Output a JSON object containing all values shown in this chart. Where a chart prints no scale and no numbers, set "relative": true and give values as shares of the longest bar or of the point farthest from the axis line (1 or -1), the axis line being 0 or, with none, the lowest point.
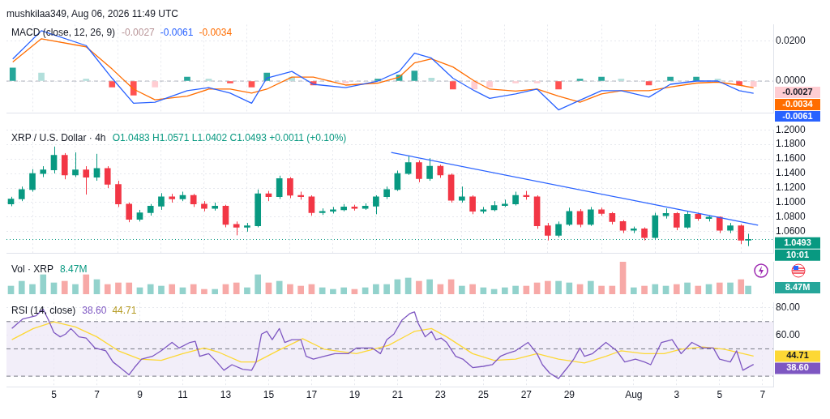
{
  "chart_data": [
    {
      "type": "line",
      "title": "mushkilaa349, Aug 06, 2026 11:49 UTC",
      "subtitle": "MACD (close, 12, 26, 9)",
      "tick_labels": "y",
      "grid": true,
      "legend": false,
      "xlim": [
        "2026-07-02T19:00",
        "2026-08-07T12:00"
      ],
      "xticks": [
        "2026-07-05",
        "2026-07-07",
        "2026-07-09",
        "2026-07-11",
        "2026-07-13",
        "2026-07-15",
        "2026-07-17",
        "2026-07-19",
        "2026-07-21",
        "2026-07-23",
        "2026-07-25",
        "2026-07-27",
        "2026-07-29",
        "2026-08-01",
        "2026-08-03",
        "2026-08-05",
        "2026-08-07"
      ],
      "ylim": [
        -0.016,
        0.028
      ],
      "yticks": [
        {
          "value": 0.02,
          "label": "0.0200"
        },
        {
          "value": 0,
          "label": "0.0000"
        }
      ],
      "x": [
        "2026-07-03T02:00",
        "2026-07-04T10:00",
        "2026-07-06T12:00",
        "2026-07-07T17:00",
        "2026-07-08T17:00",
        "2026-07-09T17:00",
        "2026-07-11T05:00",
        "2026-07-12T05:00",
        "2026-07-13T05:00",
        "2026-07-14T05:00",
        "2026-07-14T22:00",
        "2026-07-16T02:00",
        "2026-07-17T02:00",
        "2026-07-18T14:00",
        "2026-07-20T02:00",
        "2026-07-21T02:00",
        "2026-07-21T19:00",
        "2026-07-22T14:00",
        "2026-07-23T14:00",
        "2026-07-24T14:00",
        "2026-07-25T07:00",
        "2026-07-26T12:00",
        "2026-07-27T12:00",
        "2026-07-28T12:00",
        "2026-07-29T12:00",
        "2026-07-30T12:00",
        "2026-07-31T10:00",
        "2026-08-01T17:00",
        "2026-08-02T17:00",
        "2026-08-03T22:00",
        "2026-08-04T22:00",
        "2026-08-05T22:00",
        "2026-08-06T14:00"
      ],
      "series": [
        {
          "type": "bar",
          "values": [
            0.0065,
            0.004,
            0.001,
            -0.003,
            -0.007,
            -0.003,
            0.002,
            0.001,
            -0.001,
            -0.003,
            0.004,
            0.002,
            -0.002,
            -0.001,
            0.001,
            0.003,
            0.005,
            0.0015,
            -0.004,
            -0.004,
            -0.003,
            -0.001,
            -0.001,
            -0.004,
            0.001,
            0.002,
            0.001,
            -0.002,
            0.002,
            0.002,
            0.001,
            -0.002,
            -0.0027
          ],
          "colors": [
            "#26a69a",
            "#b2dfdb",
            "#b2dfdb",
            "#ff5252",
            "#ff5252",
            "#ffcdd2",
            "#26a69a",
            "#b2dfdb",
            "#ff5252",
            "#ff5252",
            "#26a69a",
            "#b2dfdb",
            "#ff5252",
            "#ffcdd2",
            "#26a69a",
            "#26a69a",
            "#26a69a",
            "#b2dfdb",
            "#ff5252",
            "#ffcdd2",
            "#ffcdd2",
            "#ffcdd2",
            "#ffcdd2",
            "#ff5252",
            "#26a69a",
            "#26a69a",
            "#b2dfdb",
            "#ff5252",
            "#26a69a",
            "#26a69a",
            "#b2dfdb",
            "#ff5252",
            "#ffcdd2"
          ]
        },
        {
          "type": "line",
          "color": "#2962ff",
          "values": [
            0.011,
            0.025,
            0.0176,
            0.0014,
            -0.011,
            -0.0105,
            -0.0048,
            -0.0033,
            -0.006,
            -0.011,
            0.0015,
            0.0048,
            -0.0016,
            -0.0033,
            0,
            0.0048,
            0.0138,
            0.0114,
            0.0014,
            -0.0048,
            -0.0086,
            -0.0064,
            -0.004,
            -0.0143,
            -0.0095,
            -0.0048,
            -0.0048,
            -0.008,
            -0.0016,
            0,
            0,
            -0.0048,
            -0.0061
          ]
        },
        {
          "type": "line",
          "color": "#ff6d00",
          "values": [
            0.0095,
            0.021,
            0.017,
            0.006,
            -0.004,
            -0.0093,
            -0.0075,
            -0.004,
            -0.004,
            -0.006,
            -0.004,
            0.002,
            0.002,
            -0.002,
            -0.001,
            0.002,
            0.009,
            0.011,
            0.007,
            0,
            -0.004,
            -0.005,
            -0.004,
            -0.0075,
            -0.0105,
            -0.0064,
            -0.0048,
            -0.0048,
            -0.003,
            -0.001,
            -0.0005,
            -0.002,
            -0.0034
          ]
        }
      ],
      "ref_lines": [
        {
          "axis": "y",
          "value": 0,
          "color": "#b2b5be",
          "line_style": "dashed"
        }
      ],
      "annotations": [
        "-0.0027",
        "-0.0061",
        "-0.0034"
      ]
    },
    {
      "type": "candlestick",
      "title": "XRP / U.S. Dollar · 4h",
      "tick_labels": "y",
      "grid": true,
      "legend": false,
      "xlim": [
        "2026-07-02T19:00",
        "2026-08-07T12:00"
      ],
      "xticks": [
        "2026-07-05",
        "2026-07-07",
        "2026-07-09",
        "2026-07-11",
        "2026-07-13",
        "2026-07-15",
        "2026-07-17",
        "2026-07-19",
        "2026-07-21",
        "2026-07-23",
        "2026-07-25",
        "2026-07-27",
        "2026-07-29",
        "2026-08-01",
        "2026-08-03",
        "2026-08-05",
        "2026-08-07"
      ],
      "ylim": [
        1.03,
        1.2
      ],
      "yticks": [
        {
          "value": 1.06,
          "label": "1.0600"
        },
        {
          "value": 1.08,
          "label": "1.0800"
        },
        {
          "value": 1.1,
          "label": "1.1000"
        },
        {
          "value": 1.12,
          "label": "1.1200"
        },
        {
          "value": 1.14,
          "label": "1.1400"
        },
        {
          "value": 1.16,
          "label": "1.1600"
        },
        {
          "value": 1.18,
          "label": "1.1800"
        },
        {
          "value": 1.2,
          "label": "1.2000"
        }
      ],
      "x": [
        "2026-07-03T00:00",
        "2026-07-03T12:00",
        "2026-07-04T00:00",
        "2026-07-04T12:00",
        "2026-07-05T00:00",
        "2026-07-05T12:00",
        "2026-07-06T00:00",
        "2026-07-06T12:00",
        "2026-07-07T00:00",
        "2026-07-07T12:00",
        "2026-07-08T00:00",
        "2026-07-08T12:00",
        "2026-07-09T00:00",
        "2026-07-09T12:00",
        "2026-07-10T00:00",
        "2026-07-10T12:00",
        "2026-07-11T00:00",
        "2026-07-11T12:00",
        "2026-07-12T00:00",
        "2026-07-12T12:00",
        "2026-07-13T00:00",
        "2026-07-13T12:00",
        "2026-07-14T00:00",
        "2026-07-14T12:00",
        "2026-07-15T00:00",
        "2026-07-15T12:00",
        "2026-07-16T00:00",
        "2026-07-16T12:00",
        "2026-07-17T00:00",
        "2026-07-17T12:00",
        "2026-07-18T00:00",
        "2026-07-18T12:00",
        "2026-07-19T00:00",
        "2026-07-19T12:00",
        "2026-07-20T00:00",
        "2026-07-20T12:00",
        "2026-07-21T00:00",
        "2026-07-21T12:00",
        "2026-07-22T00:00",
        "2026-07-22T12:00",
        "2026-07-23T00:00",
        "2026-07-23T12:00",
        "2026-07-24T00:00",
        "2026-07-24T12:00",
        "2026-07-25T00:00",
        "2026-07-25T12:00",
        "2026-07-26T00:00",
        "2026-07-26T12:00",
        "2026-07-27T00:00",
        "2026-07-27T12:00",
        "2026-07-28T00:00",
        "2026-07-28T12:00",
        "2026-07-29T00:00",
        "2026-07-29T12:00",
        "2026-07-30T00:00",
        "2026-07-30T12:00",
        "2026-07-31T00:00",
        "2026-07-31T12:00",
        "2026-08-01T00:00",
        "2026-08-01T12:00",
        "2026-08-02T00:00",
        "2026-08-02T12:00",
        "2026-08-03T00:00",
        "2026-08-03T12:00",
        "2026-08-04T00:00",
        "2026-08-04T12:00",
        "2026-08-05T00:00",
        "2026-08-05T12:00",
        "2026-08-06T00:00",
        "2026-08-06T08:00"
      ],
      "ohlc": [
        [
          1.098,
          1.108,
          1.095,
          1.105
        ],
        [
          1.105,
          1.122,
          1.102,
          1.118
        ],
        [
          1.118,
          1.146,
          1.115,
          1.14
        ],
        [
          1.14,
          1.15,
          1.135,
          1.145
        ],
        [
          1.145,
          1.177,
          1.14,
          1.165
        ],
        [
          1.165,
          1.168,
          1.132,
          1.138
        ],
        [
          1.138,
          1.169,
          1.135,
          1.145
        ],
        [
          1.145,
          1.15,
          1.111,
          1.135
        ],
        [
          1.135,
          1.167,
          1.13,
          1.147
        ],
        [
          1.147,
          1.15,
          1.12,
          1.125
        ],
        [
          1.125,
          1.13,
          1.094,
          1.098
        ],
        [
          1.098,
          1.1,
          1.073,
          1.077
        ],
        [
          1.077,
          1.09,
          1.074,
          1.086
        ],
        [
          1.086,
          1.098,
          1.082,
          1.095
        ],
        [
          1.095,
          1.113,
          1.09,
          1.108
        ],
        [
          1.108,
          1.112,
          1.1,
          1.105
        ],
        [
          1.105,
          1.115,
          1.102,
          1.11
        ],
        [
          1.11,
          1.112,
          1.094,
          1.098
        ],
        [
          1.098,
          1.102,
          1.088,
          1.092
        ],
        [
          1.092,
          1.1,
          1.089,
          1.095
        ],
        [
          1.095,
          1.097,
          1.066,
          1.07
        ],
        [
          1.07,
          1.074,
          1.055,
          1.066
        ],
        [
          1.066,
          1.072,
          1.06,
          1.068
        ],
        [
          1.068,
          1.118,
          1.066,
          1.112
        ],
        [
          1.112,
          1.116,
          1.102,
          1.108
        ],
        [
          1.108,
          1.137,
          1.105,
          1.133
        ],
        [
          1.133,
          1.135,
          1.106,
          1.11
        ],
        [
          1.11,
          1.115,
          1.104,
          1.108
        ],
        [
          1.108,
          1.11,
          1.082,
          1.086
        ],
        [
          1.086,
          1.092,
          1.083,
          1.088
        ],
        [
          1.088,
          1.094,
          1.085,
          1.09
        ],
        [
          1.09,
          1.098,
          1.088,
          1.094
        ],
        [
          1.094,
          1.097,
          1.089,
          1.092
        ],
        [
          1.092,
          1.099,
          1.09,
          1.095
        ],
        [
          1.095,
          1.11,
          1.084,
          1.108
        ],
        [
          1.108,
          1.122,
          1.105,
          1.118
        ],
        [
          1.118,
          1.144,
          1.116,
          1.14
        ],
        [
          1.14,
          1.164,
          1.138,
          1.155
        ],
        [
          1.155,
          1.158,
          1.128,
          1.133
        ],
        [
          1.133,
          1.161,
          1.13,
          1.15
        ],
        [
          1.15,
          1.152,
          1.134,
          1.138
        ],
        [
          1.138,
          1.14,
          1.1,
          1.103
        ],
        [
          1.103,
          1.122,
          1.1,
          1.108
        ],
        [
          1.108,
          1.11,
          1.084,
          1.088
        ],
        [
          1.088,
          1.094,
          1.085,
          1.09
        ],
        [
          1.09,
          1.102,
          1.088,
          1.096
        ],
        [
          1.096,
          1.104,
          1.094,
          1.098
        ],
        [
          1.098,
          1.115,
          1.096,
          1.11
        ],
        [
          1.11,
          1.116,
          1.104,
          1.108
        ],
        [
          1.108,
          1.11,
          1.064,
          1.068
        ],
        [
          1.068,
          1.072,
          1.048,
          1.055
        ],
        [
          1.055,
          1.074,
          1.052,
          1.07
        ],
        [
          1.07,
          1.093,
          1.068,
          1.088
        ],
        [
          1.088,
          1.091,
          1.066,
          1.07
        ],
        [
          1.07,
          1.094,
          1.068,
          1.09
        ],
        [
          1.09,
          1.093,
          1.082,
          1.085
        ],
        [
          1.085,
          1.087,
          1.07,
          1.074
        ],
        [
          1.074,
          1.076,
          1.058,
          1.062
        ],
        [
          1.062,
          1.067,
          1.058,
          1.064
        ],
        [
          1.064,
          1.066,
          1.048,
          1.052
        ],
        [
          1.052,
          1.086,
          1.05,
          1.082
        ],
        [
          1.082,
          1.092,
          1.078,
          1.085
        ],
        [
          1.085,
          1.087,
          1.062,
          1.066
        ],
        [
          1.066,
          1.088,
          1.064,
          1.084
        ],
        [
          1.084,
          1.086,
          1.075,
          1.078
        ],
        [
          1.078,
          1.082,
          1.074,
          1.08
        ],
        [
          1.08,
          1.081,
          1.058,
          1.062
        ],
        [
          1.062,
          1.072,
          1.058,
          1.068
        ],
        [
          1.068,
          1.07,
          1.043,
          1.0483
        ],
        [
          1.0483,
          1.0571,
          1.0402,
          1.0493
        ]
      ],
      "series": [
        {
          "type": "line",
          "color": "#2962ff",
          "x": [
            "2026-07-20T17:00",
            "2026-08-06T19:00"
          ],
          "values": [
            1.169,
            1.069
          ]
        }
      ],
      "ref_lines": [
        {
          "axis": "y",
          "value": 1.0493,
          "label": "1.0493",
          "color": "#089981",
          "line_style": "dotted"
        }
      ],
      "annotations": [
        "O1.0483 H1.0571 L1.0402 C1.0493 +0.0011 (+0.10%)",
        "10:01"
      ]
    },
    {
      "type": "bar",
      "title": "Vol · XRP",
      "relative": true,
      "tick_labels": false,
      "legend": false,
      "xlim": [
        "2026-07-02T19:00",
        "2026-08-07T12:00"
      ],
      "x": [
        "2026-07-03T00:00",
        "2026-07-03T12:00",
        "2026-07-04T00:00",
        "2026-07-04T12:00",
        "2026-07-05T00:00",
        "2026-07-05T12:00",
        "2026-07-06T00:00",
        "2026-07-06T12:00",
        "2026-07-07T00:00",
        "2026-07-07T12:00",
        "2026-07-08T00:00",
        "2026-07-08T12:00",
        "2026-07-09T00:00",
        "2026-07-09T12:00",
        "2026-07-10T00:00",
        "2026-07-10T12:00",
        "2026-07-11T00:00",
        "2026-07-11T12:00",
        "2026-07-12T00:00",
        "2026-07-12T12:00",
        "2026-07-13T00:00",
        "2026-07-13T12:00",
        "2026-07-14T00:00",
        "2026-07-14T12:00",
        "2026-07-15T00:00",
        "2026-07-15T12:00",
        "2026-07-16T00:00",
        "2026-07-16T12:00",
        "2026-07-17T00:00",
        "2026-07-17T12:00",
        "2026-07-18T00:00",
        "2026-07-18T12:00",
        "2026-07-19T00:00",
        "2026-07-19T12:00",
        "2026-07-20T00:00",
        "2026-07-20T12:00",
        "2026-07-21T00:00",
        "2026-07-21T12:00",
        "2026-07-22T00:00",
        "2026-07-22T12:00",
        "2026-07-23T00:00",
        "2026-07-23T12:00",
        "2026-07-24T00:00",
        "2026-07-24T12:00",
        "2026-07-25T00:00",
        "2026-07-25T12:00",
        "2026-07-26T00:00",
        "2026-07-26T12:00",
        "2026-07-27T00:00",
        "2026-07-27T12:00",
        "2026-07-28T00:00",
        "2026-07-28T12:00",
        "2026-07-29T00:00",
        "2026-07-29T12:00",
        "2026-07-30T00:00",
        "2026-07-30T12:00",
        "2026-07-31T00:00",
        "2026-07-31T12:00",
        "2026-08-01T00:00",
        "2026-08-01T12:00",
        "2026-08-02T00:00",
        "2026-08-02T12:00",
        "2026-08-03T00:00",
        "2026-08-03T12:00",
        "2026-08-04T00:00",
        "2026-08-04T12:00",
        "2026-08-05T00:00",
        "2026-08-05T12:00",
        "2026-08-06T00:00",
        "2026-08-06T08:00"
      ],
      "values": [
        0.25,
        0.4,
        0.3,
        0.6,
        0.35,
        0.4,
        0.3,
        0.6,
        0.45,
        0.3,
        0.35,
        0.35,
        0.2,
        0.3,
        0.25,
        0.3,
        0.2,
        0.3,
        0.15,
        0.15,
        0.3,
        0.35,
        0.2,
        0.6,
        0.35,
        0.4,
        0.3,
        0.25,
        0.3,
        0.2,
        0.15,
        0.2,
        0.15,
        0.2,
        0.3,
        0.3,
        0.45,
        0.5,
        0.4,
        0.45,
        0.3,
        0.45,
        0.25,
        0.3,
        0.2,
        0.15,
        0.2,
        0.25,
        0.25,
        0.35,
        0.4,
        0.4,
        0.35,
        0.3,
        0.4,
        0.25,
        0.25,
        1,
        0.2,
        0.25,
        0.3,
        0.25,
        0.3,
        0.35,
        0.25,
        0.3,
        0.35,
        0.35,
        0.45,
        0.25
      ],
      "colors": [
        "#92d2cc",
        "#92d2cc",
        "#92d2cc",
        "#92d2cc",
        "#92d2cc",
        "#f7a9a7",
        "#92d2cc",
        "#f7a9a7",
        "#92d2cc",
        "#f7a9a7",
        "#f7a9a7",
        "#f7a9a7",
        "#92d2cc",
        "#92d2cc",
        "#92d2cc",
        "#f7a9a7",
        "#92d2cc",
        "#f7a9a7",
        "#f7a9a7",
        "#92d2cc",
        "#f7a9a7",
        "#f7a9a7",
        "#92d2cc",
        "#92d2cc",
        "#f7a9a7",
        "#92d2cc",
        "#f7a9a7",
        "#f7a9a7",
        "#f7a9a7",
        "#92d2cc",
        "#92d2cc",
        "#92d2cc",
        "#f7a9a7",
        "#92d2cc",
        "#92d2cc",
        "#92d2cc",
        "#92d2cc",
        "#92d2cc",
        "#f7a9a7",
        "#92d2cc",
        "#f7a9a7",
        "#f7a9a7",
        "#92d2cc",
        "#f7a9a7",
        "#92d2cc",
        "#92d2cc",
        "#92d2cc",
        "#92d2cc",
        "#f7a9a7",
        "#f7a9a7",
        "#f7a9a7",
        "#92d2cc",
        "#92d2cc",
        "#f7a9a7",
        "#92d2cc",
        "#f7a9a7",
        "#f7a9a7",
        "#f7a9a7",
        "#92d2cc",
        "#f7a9a7",
        "#92d2cc",
        "#92d2cc",
        "#f7a9a7",
        "#92d2cc",
        "#f7a9a7",
        "#92d2cc",
        "#f7a9a7",
        "#92d2cc",
        "#f7a9a7",
        "#92d2cc"
      ],
      "annotations": [
        "8.47M",
        "8.47M"
      ]
    },
    {
      "type": "line",
      "title": "RSI (14, close)",
      "grid": true,
      "legend": false,
      "xlim": [
        "2026-07-02T19:00",
        "2026-08-07T12:00"
      ],
      "xticks": [
        {
          "value": "2026-07-05",
          "label": "5"
        },
        {
          "value": "2026-07-07",
          "label": "7"
        },
        {
          "value": "2026-07-09",
          "label": "9"
        },
        {
          "value": "2026-07-11",
          "label": "11"
        },
        {
          "value": "2026-07-13",
          "label": "13"
        },
        {
          "value": "2026-07-15",
          "label": "15"
        },
        {
          "value": "2026-07-17",
          "label": "17"
        },
        {
          "value": "2026-07-19",
          "label": "19"
        },
        {
          "value": "2026-07-21",
          "label": "21"
        },
        {
          "value": "2026-07-23",
          "label": "23"
        },
        {
          "value": "2026-07-25",
          "label": "25"
        },
        {
          "value": "2026-07-27",
          "label": "27"
        },
        {
          "value": "2026-07-29",
          "label": "29"
        },
        {
          "value": "2026-08-01",
          "label": "Aug"
        },
        {
          "value": "2026-08-03",
          "label": "3"
        },
        {
          "value": "2026-08-05",
          "label": "5"
        },
        {
          "value": "2026-08-07",
          "label": "7"
        }
      ],
      "ylim": [
        22,
        84
      ],
      "yticks": [
        {
          "value": 60,
          "label": "60.00"
        },
        {
          "value": 80,
          "label": "80.00"
        }
      ],
      "bands": [
        {
          "axis": "y",
          "from": 30,
          "to": 70,
          "color": "#ede7f6"
        }
      ],
      "ref_lines": [
        {
          "axis": "y",
          "value": 70,
          "color": "#787b86",
          "line_style": "dashed"
        },
        {
          "axis": "y",
          "value": 50,
          "color": "#787b86",
          "line_style": "dashed"
        },
        {
          "axis": "y",
          "value": 30,
          "color": "#787b86",
          "line_style": "dashed"
        }
      ],
      "series": [
        {
          "color": "#7e57c2",
          "x": [
            "2026-07-03T01:00",
            "2026-07-03T13:00",
            "2026-07-04T04:00",
            "2026-07-04T12:00",
            "2026-07-04T18:00",
            "2026-07-05T00:00",
            "2026-07-05T07:00",
            "2026-07-05T13:00",
            "2026-07-05T19:00",
            "2026-07-06T04:00",
            "2026-07-06T12:00",
            "2026-07-06T22:00",
            "2026-07-07T10:00",
            "2026-07-07T18:00",
            "2026-07-08T02:00",
            "2026-07-08T12:00",
            "2026-07-08T18:00",
            "2026-07-09T02:00",
            "2026-07-09T14:00",
            "2026-07-10T00:00",
            "2026-07-10T12:00",
            "2026-07-10T20:00",
            "2026-07-11T08:00",
            "2026-07-11T14:00",
            "2026-07-11T19:00",
            "2026-07-12T05:00",
            "2026-07-12T14:00",
            "2026-07-12T22:00",
            "2026-07-13T07:00",
            "2026-07-13T19:00",
            "2026-07-14T05:00",
            "2026-07-14T10:00",
            "2026-07-14T16:00",
            "2026-07-14T22:00",
            "2026-07-15T04:00",
            "2026-07-15T12:00",
            "2026-07-15T18:00",
            "2026-07-16T02:00",
            "2026-07-16T12:00",
            "2026-07-16T18:00",
            "2026-07-17T02:00",
            "2026-07-17T14:00",
            "2026-07-18T02:00",
            "2026-07-18T17:00",
            "2026-07-19T02:00",
            "2026-07-19T20:00",
            "2026-07-20T05:00",
            "2026-07-20T12:00",
            "2026-07-20T20:00",
            "2026-07-21T05:00",
            "2026-07-21T14:00",
            "2026-07-21T19:00",
            "2026-07-21T23:00",
            "2026-07-22T07:00",
            "2026-07-22T14:00",
            "2026-07-22T19:00",
            "2026-07-23T01:00",
            "2026-07-23T07:00",
            "2026-07-23T17:00",
            "2026-07-24T01:00",
            "2026-07-24T12:00",
            "2026-07-25T00:00",
            "2026-07-25T10:00",
            "2026-07-25T19:00",
            "2026-07-26T02:00",
            "2026-07-26T12:00",
            "2026-07-27T02:00",
            "2026-07-27T12:00",
            "2026-07-27T18:00",
            "2026-07-28T02:00",
            "2026-07-28T12:00",
            "2026-07-28T22:00",
            "2026-07-29T05:00",
            "2026-07-29T12:00",
            "2026-07-29T17:00",
            "2026-07-30T02:00",
            "2026-07-30T17:00",
            "2026-07-31T05:00",
            "2026-07-31T14:00",
            "2026-08-01T02:00",
            "2026-08-01T12:00",
            "2026-08-01T19:00",
            "2026-08-02T07:00",
            "2026-08-02T19:00",
            "2026-08-03T05:00",
            "2026-08-03T17:00",
            "2026-08-04T05:00",
            "2026-08-04T17:00",
            "2026-08-05T00:00",
            "2026-08-05T12:00",
            "2026-08-05T19:00",
            "2026-08-06T02:00",
            "2026-08-06T14:00"
          ],
          "values": [
            64.9,
            71.8,
            74.3,
            79.1,
            71,
            62,
            58.8,
            60.8,
            64.9,
            58.8,
            57.9,
            50.6,
            48.6,
            40.4,
            36.3,
            31,
            36.3,
            42.5,
            44.5,
            48.6,
            54.7,
            50.6,
            54.7,
            55.5,
            44.5,
            46.5,
            40.4,
            34.3,
            38.4,
            35.1,
            34.3,
            40.4,
            60.8,
            62.8,
            56.7,
            64.9,
            54.7,
            56.7,
            56.7,
            44.5,
            42.5,
            44.5,
            46.5,
            46.5,
            50.6,
            50.6,
            46.5,
            56.7,
            60.8,
            71,
            75.9,
            77.1,
            69,
            58.8,
            62.8,
            56.7,
            57.9,
            54.7,
            44.5,
            42.5,
            36.3,
            37.2,
            38.4,
            44.5,
            46.5,
            48.6,
            54.7,
            46.5,
            38.4,
            32.3,
            28.2,
            36.3,
            42.5,
            50.6,
            44.5,
            46.5,
            54.7,
            48.6,
            40.4,
            42.5,
            40.4,
            38.4,
            54.7,
            56.7,
            46.5,
            54.7,
            50.6,
            50.6,
            42.5,
            40.4,
            48.6,
            34.3,
            38.6
          ]
        },
        {
          "color": "#fdd835",
          "x": [
            "2026-07-03T01:00",
            "2026-07-04T01:00",
            "2026-07-05T00:00",
            "2026-07-06T00:00",
            "2026-07-07T00:00",
            "2026-07-08T00:00",
            "2026-07-09T00:00",
            "2026-07-10T00:00",
            "2026-07-11T00:00",
            "2026-07-12T00:00",
            "2026-07-12T17:00",
            "2026-07-13T17:00",
            "2026-07-14T10:00",
            "2026-07-15T10:00",
            "2026-07-16T14:00",
            "2026-07-17T14:00",
            "2026-07-19T02:00",
            "2026-07-20T14:00",
            "2026-07-21T19:00",
            "2026-07-22T14:00",
            "2026-07-23T07:00",
            "2026-07-24T12:00",
            "2026-07-25T12:00",
            "2026-07-26T12:00",
            "2026-07-27T12:00",
            "2026-07-28T12:00",
            "2026-07-29T17:00",
            "2026-07-30T17:00",
            "2026-07-31T10:00",
            "2026-08-01T12:00",
            "2026-08-02T10:00",
            "2026-08-03T05:00",
            "2026-08-04T05:00",
            "2026-08-05T05:00",
            "2026-08-06T14:00"
          ],
          "values": [
            56.7,
            64.9,
            69.8,
            66.1,
            58.8,
            48.6,
            42.5,
            41.6,
            46.5,
            50.6,
            47.3,
            40.4,
            40.4,
            48.6,
            57.5,
            49.8,
            46.5,
            52.6,
            62.8,
            64.9,
            58.8,
            46.5,
            41.6,
            42.5,
            46.5,
            42.5,
            39.6,
            44.5,
            48.6,
            46.5,
            46.5,
            49.8,
            51.4,
            49.8,
            44.7
          ]
        }
      ],
      "annotations": [
        "38.60",
        "44.71"
      ]
    }
  ]
}
